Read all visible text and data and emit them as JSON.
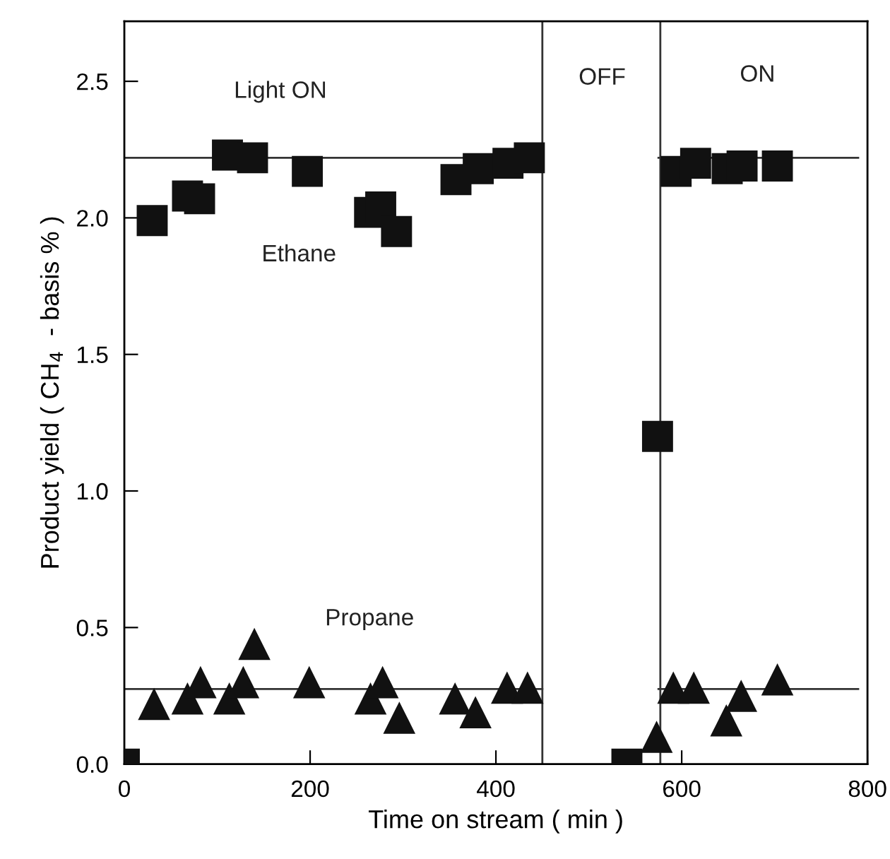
{
  "chart_data": {
    "type": "scatter",
    "xlabel": "Time on stream ( min )",
    "ylabel": "Product yield ( CH$_{4}$  - basis % )",
    "xlim": [
      0,
      800
    ],
    "ylim": [
      0,
      2.72
    ],
    "xticks": [
      0,
      200,
      400,
      600,
      800
    ],
    "yticks": [
      {
        "value": 0,
        "label": "0.0"
      },
      0.5,
      {
        "value": 1,
        "label": "1.0"
      },
      1.5,
      {
        "value": 2,
        "label": "2.0"
      },
      2.5
    ],
    "grid": false,
    "legend": false,
    "series": [
      {
        "marker": "square",
        "color": "#111111",
        "x": [
          0,
          30,
          68,
          81,
          111,
          138,
          197,
          264,
          276,
          293,
          357,
          381,
          413,
          436,
          541,
          574,
          594,
          615,
          649,
          665,
          703
        ],
        "values": [
          0,
          1.99,
          2.08,
          2.07,
          2.23,
          2.22,
          2.17,
          2.02,
          2.04,
          1.95,
          2.14,
          2.18,
          2.2,
          2.22,
          0,
          1.2,
          2.17,
          2.2,
          2.18,
          2.19,
          2.19
        ]
      },
      {
        "marker": "triangle",
        "color": "#111111",
        "x": [
          32,
          68,
          82,
          113,
          128,
          140,
          199,
          265,
          278,
          296,
          356,
          378,
          412,
          434,
          573,
          591,
          613,
          648,
          664,
          703
        ],
        "values": [
          0.22,
          0.24,
          0.3,
          0.24,
          0.3,
          0.44,
          0.3,
          0.24,
          0.3,
          0.17,
          0.24,
          0.19,
          0.28,
          0.28,
          0.1,
          0.28,
          0.28,
          0.16,
          0.25,
          0.31
        ]
      },
      {
        "type": "line",
        "marker": "none",
        "line_style": "solid",
        "color": "#333333",
        "x": [
          0,
          450,
          510,
          575,
          790
        ],
        "values": [
          2.22,
          2.22,
          null,
          2.22,
          2.22
        ]
      },
      {
        "type": "line",
        "marker": "none",
        "line_style": "solid",
        "color": "#333333",
        "x": [
          0,
          450,
          510,
          575,
          790
        ],
        "values": [
          0.275,
          0.275,
          null,
          0.275,
          0.275
        ]
      }
    ],
    "ref_lines": [
      {
        "axis": "x",
        "value": 450,
        "color": "#333333"
      },
      {
        "axis": "x",
        "value": 577,
        "color": "#333333"
      }
    ],
    "annotations": [
      "Light ON",
      "Ethane",
      "Propane",
      "OFF",
      "ON"
    ]
  }
}
